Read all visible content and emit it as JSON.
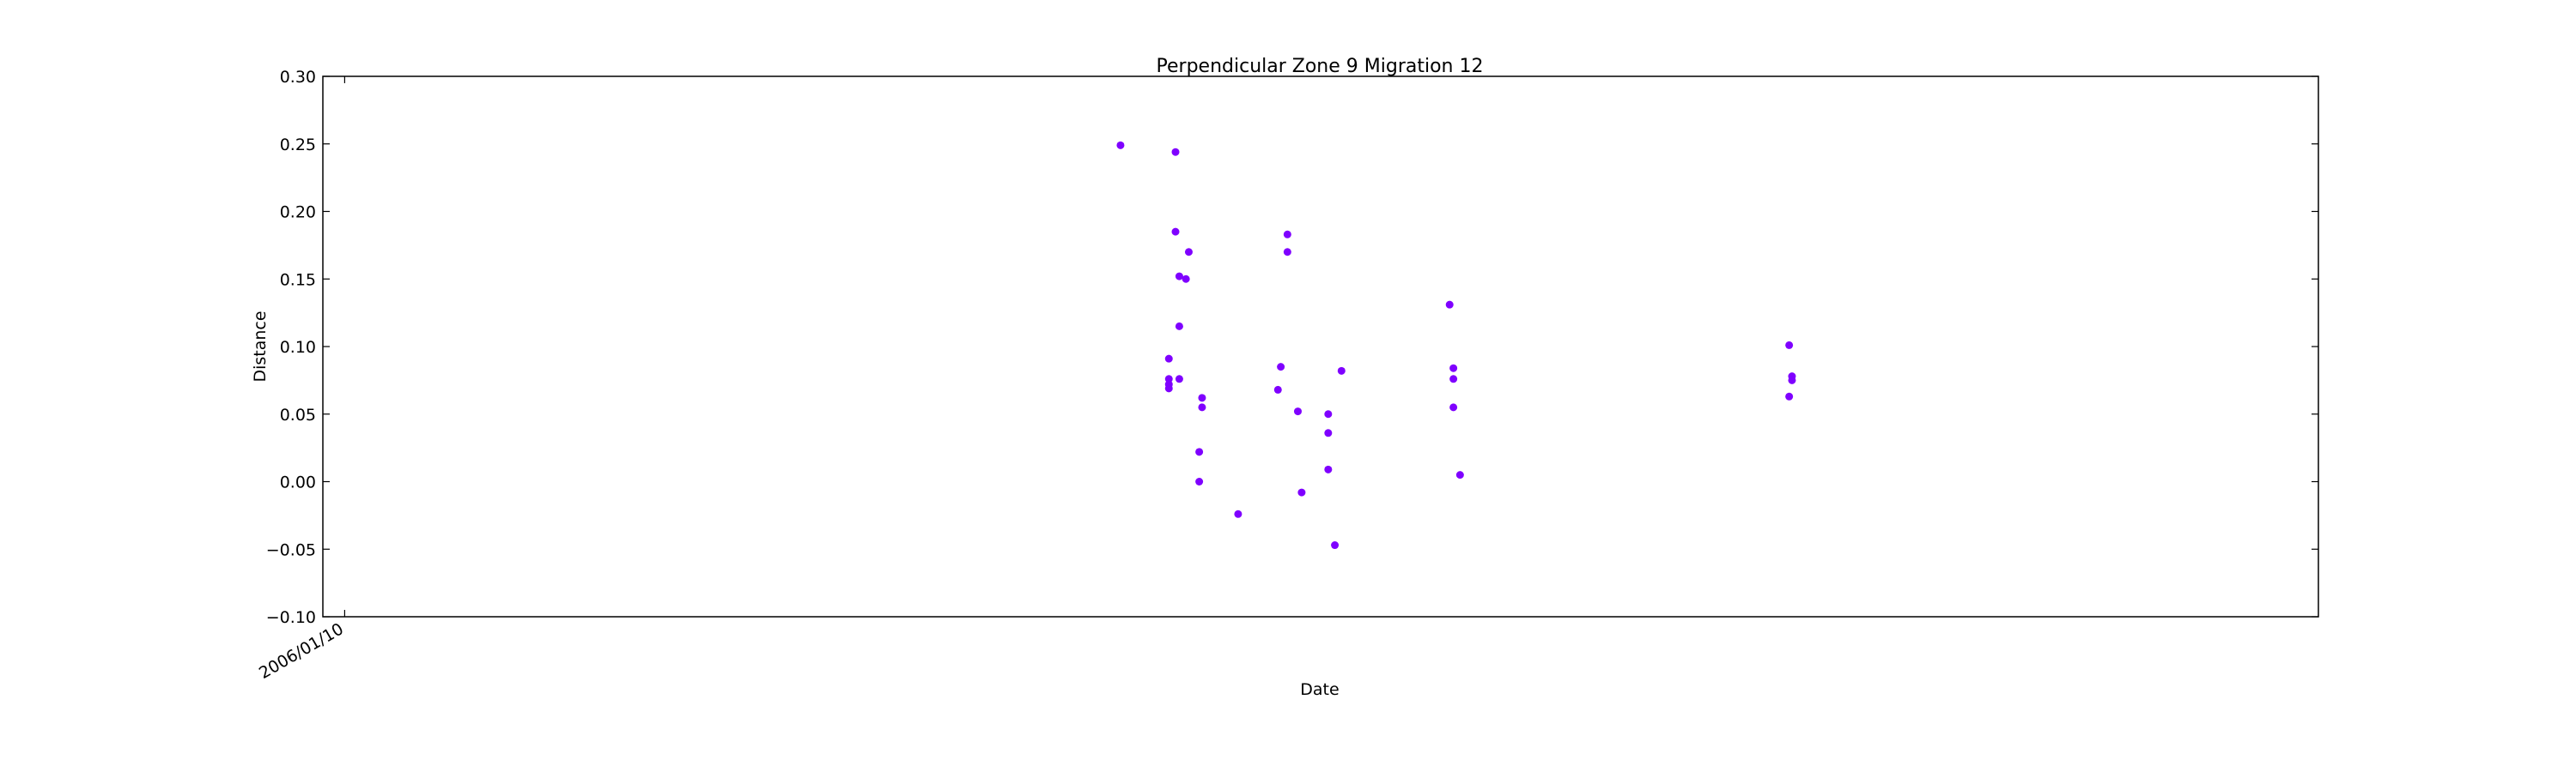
{
  "chart_data": {
    "type": "scatter",
    "title": "Perpendicular Zone 9 Migration 12",
    "xlabel": "Date",
    "ylabel": "Distance",
    "x_type": "date",
    "xlim": [
      "2005-12-18",
      "2011-09-22"
    ],
    "ylim": [
      -0.1,
      0.3
    ],
    "x_ticks": [
      "2006-01-10"
    ],
    "x_tick_labels": [
      "2006/01/10"
    ],
    "y_ticks": [
      -0.1,
      -0.05,
      0.0,
      0.05,
      0.1,
      0.15,
      0.2,
      0.25,
      0.3
    ],
    "y_tick_labels": [
      "−0.10",
      "−0.05",
      "0.00",
      "0.05",
      "0.10",
      "0.15",
      "0.20",
      "0.25",
      "0.30"
    ],
    "grid": false,
    "legend": "none",
    "marker_color": "#7f00ff",
    "points": [
      {
        "x": "2008-04-07",
        "y": 0.249
      },
      {
        "x": "2008-06-04",
        "y": 0.244
      },
      {
        "x": "2008-06-04",
        "y": 0.185
      },
      {
        "x": "2008-06-18",
        "y": 0.17
      },
      {
        "x": "2008-06-08",
        "y": 0.152
      },
      {
        "x": "2008-06-15",
        "y": 0.15
      },
      {
        "x": "2008-06-08",
        "y": 0.115
      },
      {
        "x": "2008-05-28",
        "y": 0.091
      },
      {
        "x": "2008-05-28",
        "y": 0.076
      },
      {
        "x": "2008-06-08",
        "y": 0.076
      },
      {
        "x": "2008-05-28",
        "y": 0.072
      },
      {
        "x": "2008-05-28",
        "y": 0.069
      },
      {
        "x": "2008-07-02",
        "y": 0.062
      },
      {
        "x": "2008-07-02",
        "y": 0.055
      },
      {
        "x": "2008-06-29",
        "y": 0.022
      },
      {
        "x": "2008-06-29",
        "y": 0.0
      },
      {
        "x": "2008-08-09",
        "y": -0.024
      },
      {
        "x": "2008-09-30",
        "y": 0.183
      },
      {
        "x": "2008-09-30",
        "y": 0.17
      },
      {
        "x": "2008-09-23",
        "y": 0.085
      },
      {
        "x": "2008-09-20",
        "y": 0.068
      },
      {
        "x": "2008-10-11",
        "y": 0.052
      },
      {
        "x": "2008-10-15",
        "y": -0.008
      },
      {
        "x": "2008-11-12",
        "y": 0.05
      },
      {
        "x": "2008-11-12",
        "y": 0.036
      },
      {
        "x": "2008-11-12",
        "y": 0.009
      },
      {
        "x": "2008-11-19",
        "y": -0.047
      },
      {
        "x": "2008-11-26",
        "y": 0.082
      },
      {
        "x": "2009-03-20",
        "y": 0.131
      },
      {
        "x": "2009-03-24",
        "y": 0.084
      },
      {
        "x": "2009-03-24",
        "y": 0.076
      },
      {
        "x": "2009-03-24",
        "y": 0.055
      },
      {
        "x": "2009-03-31",
        "y": 0.005
      },
      {
        "x": "2010-03-13",
        "y": 0.101
      },
      {
        "x": "2010-03-16",
        "y": 0.078
      },
      {
        "x": "2010-03-16",
        "y": 0.075
      },
      {
        "x": "2010-03-13",
        "y": 0.063
      }
    ]
  }
}
